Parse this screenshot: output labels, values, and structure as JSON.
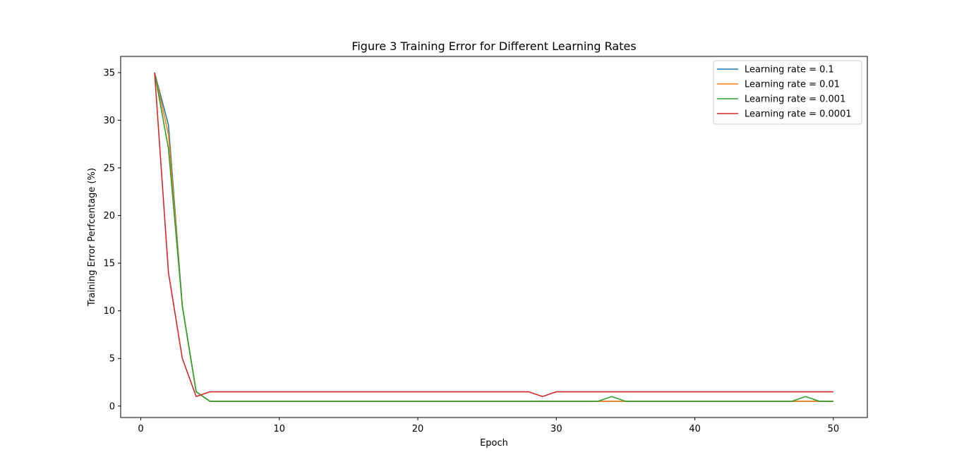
{
  "chart_data": {
    "type": "line",
    "title": "Figure 3 Training Error for Different Learning Rates",
    "xlabel": "Epoch",
    "ylabel": "Training Error Perfcentage (%)",
    "xlim": [
      -1.45,
      52.45
    ],
    "ylim": [
      -1.2,
      36.7
    ],
    "xticks": [
      0,
      10,
      20,
      30,
      40,
      50
    ],
    "yticks": [
      0,
      5,
      10,
      15,
      20,
      25,
      30,
      35
    ],
    "grid": false,
    "legend_position": "top-right",
    "x": [
      1,
      2,
      3,
      4,
      5,
      6,
      7,
      8,
      9,
      10,
      11,
      12,
      13,
      14,
      15,
      16,
      17,
      18,
      19,
      20,
      21,
      22,
      23,
      24,
      25,
      26,
      27,
      28,
      29,
      30,
      31,
      32,
      33,
      34,
      35,
      36,
      37,
      38,
      39,
      40,
      41,
      42,
      43,
      44,
      45,
      46,
      47,
      48,
      49,
      50
    ],
    "series": [
      {
        "name": "Learning rate = 0.1",
        "color": "#1f77b4",
        "values": [
          35,
          29.5,
          10.5,
          1.5,
          0.5,
          0.5,
          0.5,
          0.5,
          0.5,
          0.5,
          0.5,
          0.5,
          0.5,
          0.5,
          0.5,
          0.5,
          0.5,
          0.5,
          0.5,
          0.5,
          0.5,
          0.5,
          0.5,
          0.5,
          0.5,
          0.5,
          0.5,
          0.5,
          0.5,
          0.5,
          0.5,
          0.5,
          0.5,
          0.5,
          0.5,
          0.5,
          0.5,
          0.5,
          0.5,
          0.5,
          0.5,
          0.5,
          0.5,
          0.5,
          0.5,
          0.5,
          0.5,
          0.5,
          0.5,
          0.5
        ]
      },
      {
        "name": "Learning rate = 0.01",
        "color": "#ff7f0e",
        "values": [
          35,
          28.5,
          10.5,
          1.5,
          0.5,
          0.5,
          0.5,
          0.5,
          0.5,
          0.5,
          0.5,
          0.5,
          0.5,
          0.5,
          0.5,
          0.5,
          0.5,
          0.5,
          0.5,
          0.5,
          0.5,
          0.5,
          0.5,
          0.5,
          0.5,
          0.5,
          0.5,
          0.5,
          0.5,
          0.5,
          0.5,
          0.5,
          0.5,
          0.5,
          0.5,
          0.5,
          0.5,
          0.5,
          0.5,
          0.5,
          0.5,
          0.5,
          0.5,
          0.5,
          0.5,
          0.5,
          0.5,
          0.5,
          0.5,
          0.5
        ]
      },
      {
        "name": "Learning rate = 0.001",
        "color": "#2ca02c",
        "values": [
          35,
          27,
          10.5,
          1.5,
          0.5,
          0.5,
          0.5,
          0.5,
          0.5,
          0.5,
          0.5,
          0.5,
          0.5,
          0.5,
          0.5,
          0.5,
          0.5,
          0.5,
          0.5,
          0.5,
          0.5,
          0.5,
          0.5,
          0.5,
          0.5,
          0.5,
          0.5,
          0.5,
          0.5,
          0.5,
          0.5,
          0.5,
          0.5,
          1.0,
          0.5,
          0.5,
          0.5,
          0.5,
          0.5,
          0.5,
          0.5,
          0.5,
          0.5,
          0.5,
          0.5,
          0.5,
          0.5,
          1.0,
          0.5,
          0.5
        ]
      },
      {
        "name": "Learning rate = 0.0001",
        "color": "#d62728",
        "values": [
          35,
          14,
          5,
          1,
          1.5,
          1.5,
          1.5,
          1.5,
          1.5,
          1.5,
          1.5,
          1.5,
          1.5,
          1.5,
          1.5,
          1.5,
          1.5,
          1.5,
          1.5,
          1.5,
          1.5,
          1.5,
          1.5,
          1.5,
          1.5,
          1.5,
          1.5,
          1.5,
          1,
          1.5,
          1.5,
          1.5,
          1.5,
          1.5,
          1.5,
          1.5,
          1.5,
          1.5,
          1.5,
          1.5,
          1.5,
          1.5,
          1.5,
          1.5,
          1.5,
          1.5,
          1.5,
          1.5,
          1.5,
          1.5
        ]
      }
    ]
  }
}
